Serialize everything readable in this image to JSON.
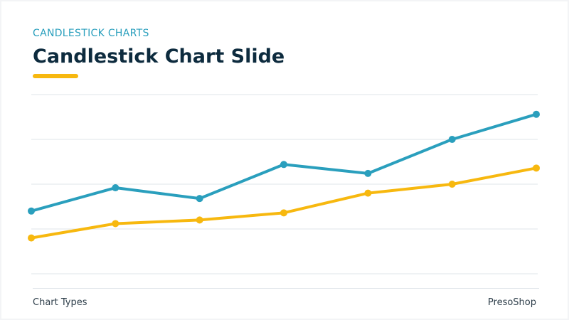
{
  "header": {
    "eyebrow": "CANDLESTICK CHARTS",
    "title": "Candlestick Chart Slide"
  },
  "footer": {
    "left_label": "Chart Types",
    "right_label": "PresoShop"
  },
  "colors": {
    "eyebrow": "#2a9fbd",
    "title": "#0d2b3e",
    "accent": "#f7b80f",
    "series_blue": "#2a9fbd",
    "series_yellow": "#f7b80f",
    "grid": "#dfe5ea"
  },
  "chart_data": {
    "type": "line",
    "title": "",
    "xlabel": "",
    "ylabel": "",
    "x": [
      1,
      2,
      3,
      4,
      5,
      6,
      7
    ],
    "ylim": [
      0,
      100
    ],
    "grid": true,
    "legend": "none",
    "series": [
      {
        "color": "#2a9fbd",
        "values": [
          35,
          48,
          42,
          61,
          56,
          75,
          89
        ]
      },
      {
        "color": "#f7b80f",
        "values": [
          20,
          28,
          30,
          34,
          45,
          50,
          59
        ]
      }
    ]
  }
}
